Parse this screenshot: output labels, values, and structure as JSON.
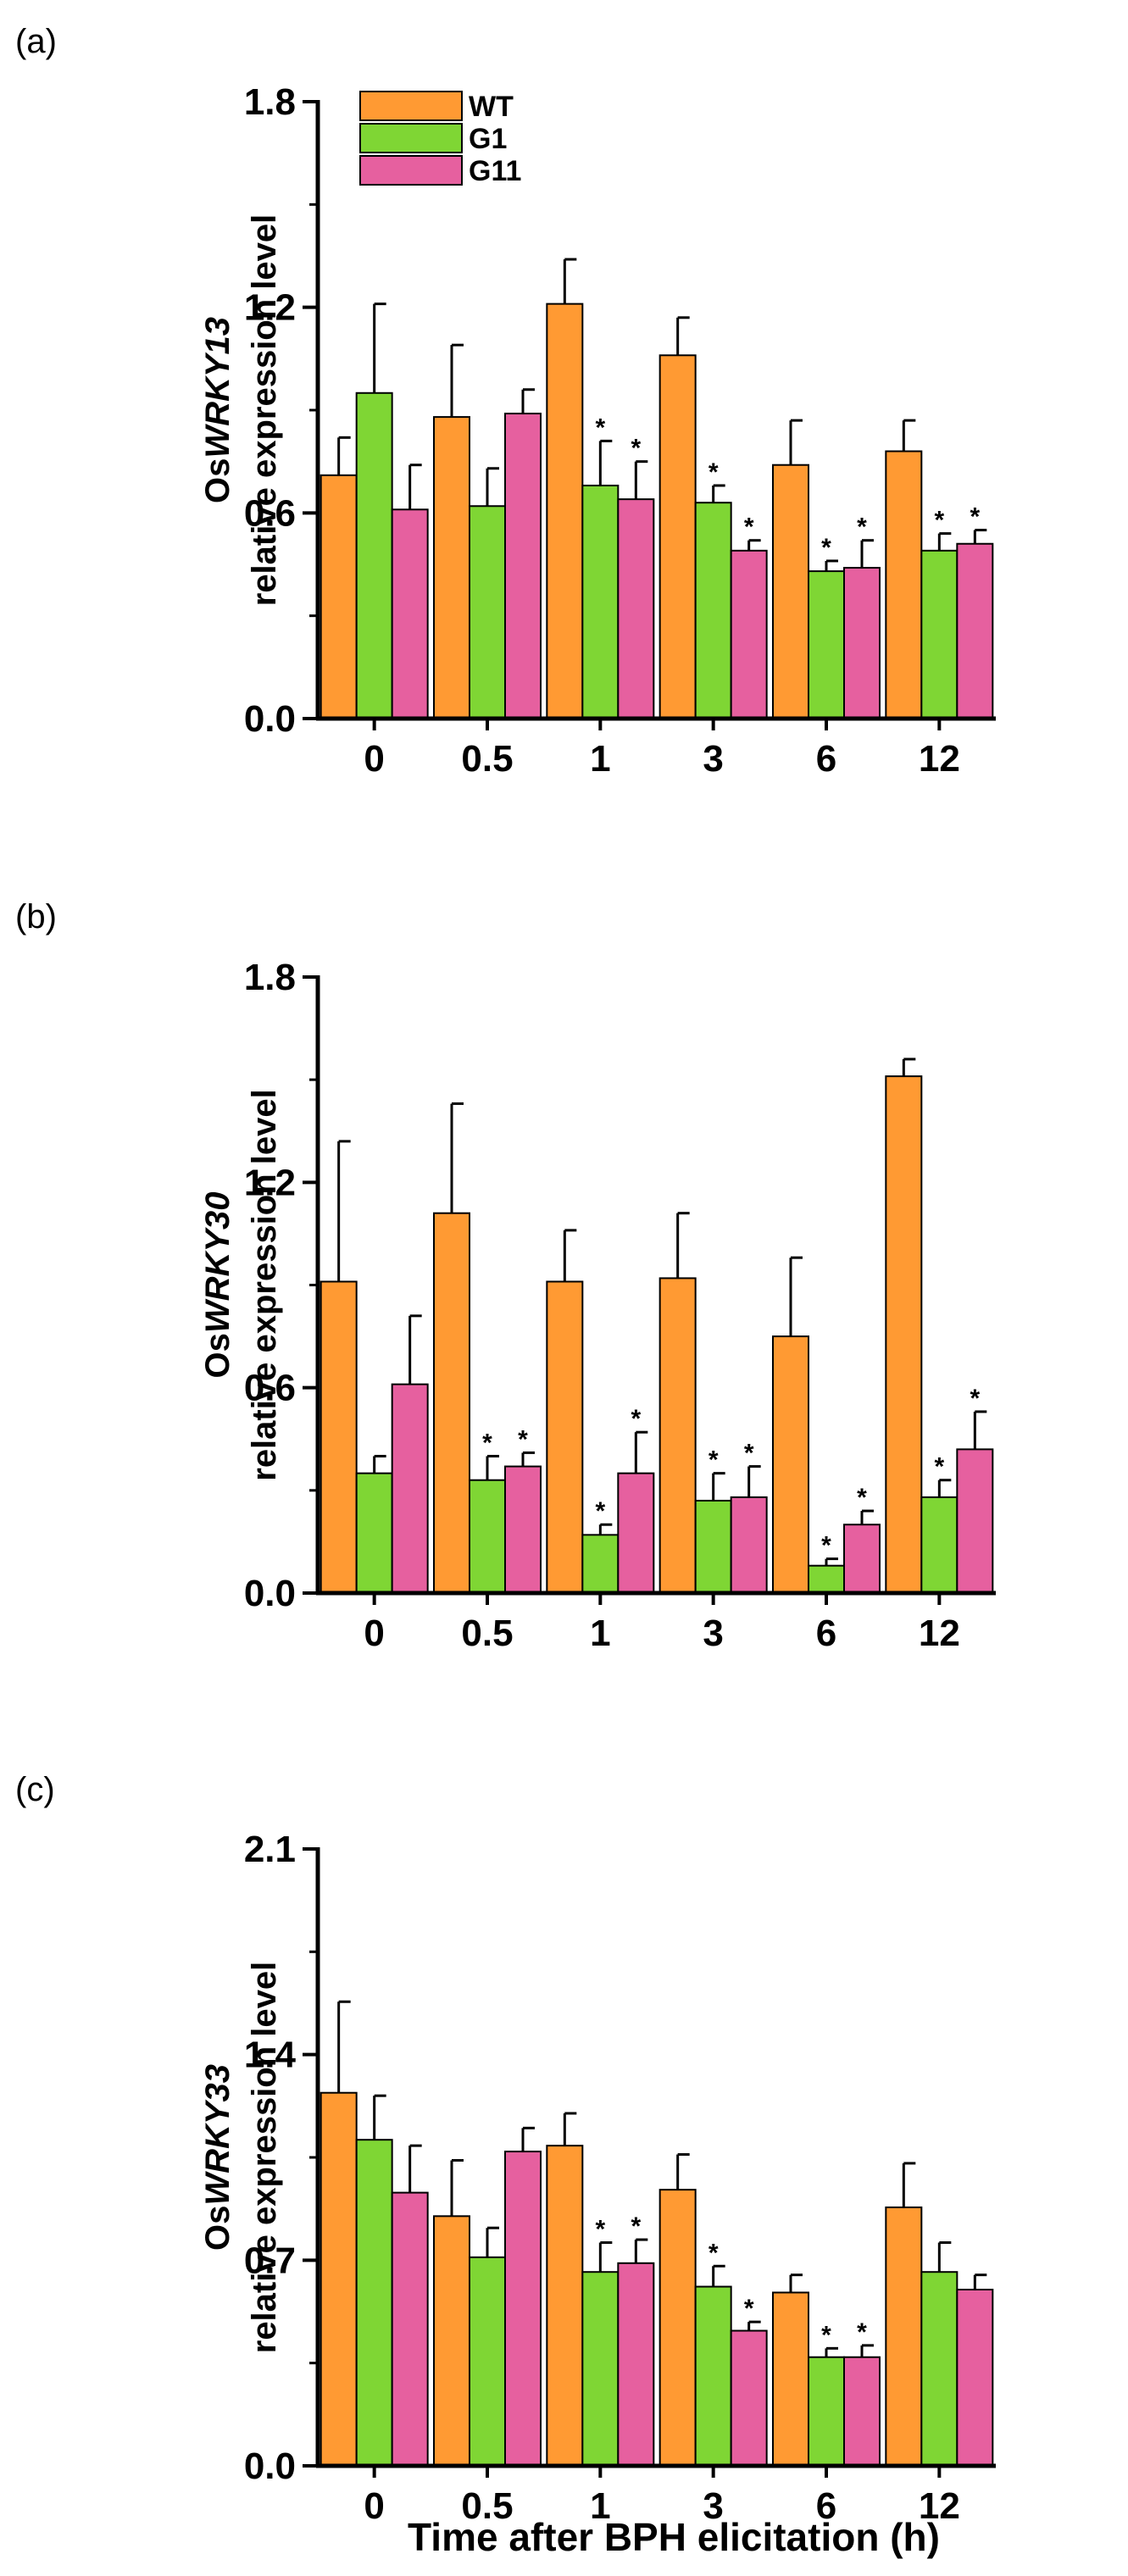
{
  "figure": {
    "xlabel": "Time after BPH elicitation (h)",
    "colors": {
      "WT": "#FF9A33",
      "G1": "#7FD634",
      "G11": "#E6609F"
    }
  },
  "chart_data": [
    {
      "type": "bar",
      "panel": "(a)",
      "ylabel_gene_prefix": "Os",
      "ylabel_gene": "WRKY13",
      "ylabel_rest": "relative expression  level",
      "ylim": [
        0,
        1.8
      ],
      "yticks": [
        "0.0",
        "0.6",
        "1.2",
        "1.8"
      ],
      "categories": [
        "0",
        "0.5",
        "1",
        "3",
        "6",
        "12"
      ],
      "legend": [
        "WT",
        "G1",
        "G11"
      ],
      "series": [
        {
          "name": "WT",
          "values": [
            0.71,
            0.88,
            1.21,
            1.06,
            0.74,
            0.78
          ],
          "errors": [
            0.11,
            0.21,
            0.13,
            0.11,
            0.13,
            0.09
          ],
          "sig": [
            false,
            false,
            false,
            false,
            false,
            false
          ]
        },
        {
          "name": "G1",
          "values": [
            0.95,
            0.62,
            0.68,
            0.63,
            0.43,
            0.49
          ],
          "errors": [
            0.26,
            0.11,
            0.13,
            0.05,
            0.03,
            0.05
          ],
          "sig": [
            false,
            false,
            true,
            true,
            true,
            true
          ]
        },
        {
          "name": "G11",
          "values": [
            0.61,
            0.89,
            0.64,
            0.49,
            0.44,
            0.51
          ],
          "errors": [
            0.13,
            0.07,
            0.11,
            0.03,
            0.08,
            0.04
          ],
          "sig": [
            false,
            false,
            true,
            true,
            true,
            true
          ]
        }
      ]
    },
    {
      "type": "bar",
      "panel": "(b)",
      "ylabel_gene_prefix": "Os",
      "ylabel_gene": "WRKY30",
      "ylabel_rest": "relative expression  level",
      "ylim": [
        0,
        1.8
      ],
      "yticks": [
        "0.0",
        "0.6",
        "1.2",
        "1.8"
      ],
      "categories": [
        "0",
        "0.5",
        "1",
        "3",
        "6",
        "12"
      ],
      "series": [
        {
          "name": "WT",
          "values": [
            0.91,
            1.11,
            0.91,
            0.92,
            0.75,
            1.51
          ],
          "errors": [
            0.41,
            0.32,
            0.15,
            0.19,
            0.23,
            0.05
          ],
          "sig": [
            false,
            false,
            false,
            false,
            false,
            false
          ]
        },
        {
          "name": "G1",
          "values": [
            0.35,
            0.33,
            0.17,
            0.27,
            0.08,
            0.28
          ],
          "errors": [
            0.05,
            0.07,
            0.03,
            0.08,
            0.02,
            0.05
          ],
          "sig": [
            false,
            true,
            true,
            true,
            true,
            true
          ]
        },
        {
          "name": "G11",
          "values": [
            0.61,
            0.37,
            0.35,
            0.28,
            0.2,
            0.42
          ],
          "errors": [
            0.2,
            0.04,
            0.12,
            0.09,
            0.04,
            0.11
          ],
          "sig": [
            false,
            true,
            true,
            true,
            true,
            true
          ]
        }
      ]
    },
    {
      "type": "bar",
      "panel": "(c)",
      "ylabel_gene_prefix": "Os",
      "ylabel_gene": "WRKY33",
      "ylabel_rest": "relative expression  level",
      "ylim": [
        0,
        2.1
      ],
      "yticks": [
        "0.0",
        "0.7",
        "1.4",
        "2.1"
      ],
      "categories": [
        "0",
        "0.5",
        "1",
        "3",
        "6",
        "12"
      ],
      "series": [
        {
          "name": "WT",
          "values": [
            1.27,
            0.85,
            1.09,
            0.94,
            0.59,
            0.88
          ],
          "errors": [
            0.31,
            0.19,
            0.11,
            0.12,
            0.06,
            0.15
          ],
          "sig": [
            false,
            false,
            false,
            false,
            false,
            false
          ]
        },
        {
          "name": "G1",
          "values": [
            1.11,
            0.71,
            0.66,
            0.61,
            0.37,
            0.66
          ],
          "errors": [
            0.15,
            0.1,
            0.1,
            0.07,
            0.03,
            0.1
          ],
          "sig": [
            false,
            false,
            true,
            true,
            true,
            false
          ]
        },
        {
          "name": "G11",
          "values": [
            0.93,
            1.07,
            0.69,
            0.46,
            0.37,
            0.6
          ],
          "errors": [
            0.16,
            0.08,
            0.08,
            0.03,
            0.04,
            0.05
          ],
          "sig": [
            false,
            false,
            true,
            true,
            true,
            false
          ]
        }
      ]
    }
  ]
}
